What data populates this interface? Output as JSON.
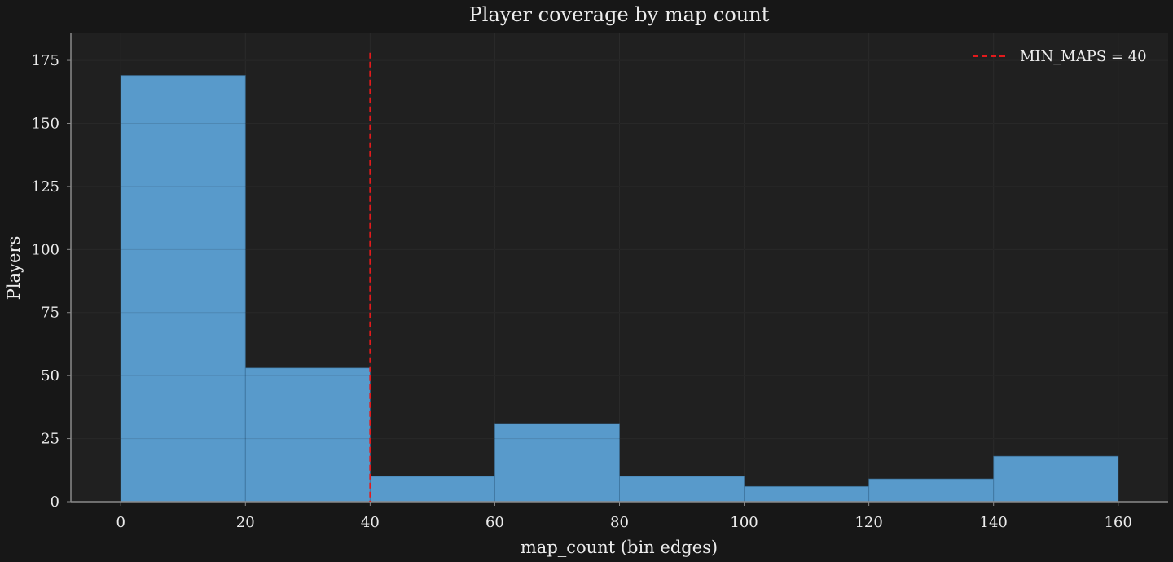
{
  "chart_data": {
    "type": "bar",
    "title": "Player coverage by map count",
    "xlabel": "map_count (bin edges)",
    "ylabel": "Players",
    "bin_edges": [
      0,
      20,
      40,
      60,
      80,
      100,
      120,
      140,
      160
    ],
    "values": [
      169,
      53,
      10,
      31,
      10,
      6,
      9,
      18
    ],
    "xlim": [
      -8,
      168
    ],
    "ylim": [
      0,
      186
    ],
    "x_ticks": [
      0,
      20,
      40,
      60,
      80,
      100,
      120,
      140,
      160
    ],
    "y_ticks": [
      0,
      25,
      50,
      75,
      100,
      125,
      150,
      175
    ],
    "reference_line": {
      "x": 40,
      "label": "MIN_MAPS = 40",
      "style": "dashed",
      "y_top": 178
    },
    "legend": {
      "placement": "top-right",
      "entries": [
        "MIN_MAPS = 40"
      ]
    },
    "grid": true,
    "colors": {
      "bars": "#5ca4d8",
      "reference_line": "#e31a1c",
      "plot_background": "#202020",
      "figure_background": "#171717",
      "grid": "#2e2e2e",
      "axis": "#8a8a8a"
    }
  }
}
